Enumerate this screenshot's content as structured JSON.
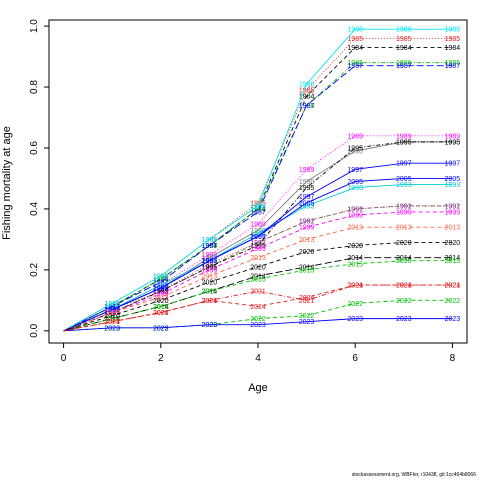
{
  "chart_data": {
    "type": "line",
    "title": "",
    "xlabel": "Age",
    "ylabel": "Fishing mortality at age",
    "x": [
      0,
      1,
      2,
      3,
      4,
      5,
      6,
      7,
      8
    ],
    "xlim": [
      -0.3,
      8.3
    ],
    "ylim": [
      -0.04,
      1.02
    ],
    "xticks": [
      "0",
      "2",
      "4",
      "6",
      "8"
    ],
    "yticks": [
      "0.0",
      "0.2",
      "0.4",
      "0.6",
      "0.8",
      "1.0"
    ],
    "grid": false,
    "series": [
      {
        "name": "1984",
        "color": "#000000",
        "dash": "dash",
        "values": [
          0,
          0.08,
          0.17,
          0.28,
          0.4,
          0.77,
          0.93,
          0.93,
          0.93
        ]
      },
      {
        "name": "1985",
        "color": "#e41a1c",
        "dash": "dot",
        "values": [
          0,
          0.09,
          0.18,
          0.3,
          0.42,
          0.79,
          0.96,
          0.96,
          0.96
        ]
      },
      {
        "name": "1986",
        "color": "#00c000",
        "dash": "dotdash",
        "values": [
          0,
          0.08,
          0.17,
          0.28,
          0.4,
          0.74,
          0.88,
          0.88,
          0.88
        ]
      },
      {
        "name": "1987",
        "color": "#0000ff",
        "dash": "longdash",
        "values": [
          0,
          0.08,
          0.16,
          0.28,
          0.39,
          0.74,
          0.87,
          0.87,
          0.87
        ]
      },
      {
        "name": "1988",
        "color": "#00e5ee",
        "dash": "solid",
        "values": [
          0,
          0.09,
          0.18,
          0.3,
          0.41,
          0.81,
          0.99,
          0.99,
          0.99
        ]
      },
      {
        "name": "1989",
        "color": "#ff00ff",
        "dash": "dot",
        "values": [
          0,
          0.07,
          0.15,
          0.25,
          0.35,
          0.53,
          0.64,
          0.64,
          0.64
        ]
      },
      {
        "name": "1990",
        "color": "#808080",
        "dash": "solid",
        "values": [
          0,
          0.07,
          0.14,
          0.24,
          0.33,
          0.49,
          0.59,
          0.62,
          0.62
        ]
      },
      {
        "name": "1991",
        "color": "#808000",
        "dash": "dash",
        "values": [
          0,
          0.06,
          0.13,
          0.21,
          0.29,
          0.36,
          0.4,
          0.41,
          0.41
        ]
      },
      {
        "name": "1992",
        "color": "#9932cc",
        "dash": "dot",
        "values": [
          0,
          0.07,
          0.13,
          0.22,
          0.29,
          0.36,
          0.4,
          0.41,
          0.41
        ]
      },
      {
        "name": "1993",
        "color": "#00ced1",
        "dash": "solid",
        "values": [
          0,
          0.07,
          0.15,
          0.23,
          0.32,
          0.41,
          0.47,
          0.48,
          0.48
        ]
      },
      {
        "name": "1995",
        "color": "#000000",
        "dash": "dotdash",
        "values": [
          0,
          0.06,
          0.13,
          0.21,
          0.28,
          0.47,
          0.6,
          0.62,
          0.62
        ]
      },
      {
        "name": "1997",
        "color": "#0000ff",
        "dash": "solid",
        "values": [
          0,
          0.07,
          0.14,
          0.23,
          0.31,
          0.44,
          0.53,
          0.55,
          0.55
        ]
      },
      {
        "name": "1999",
        "color": "#ff00ff",
        "dash": "dash",
        "values": [
          0,
          0.06,
          0.12,
          0.2,
          0.27,
          0.34,
          0.38,
          0.39,
          0.39
        ]
      },
      {
        "name": "2005",
        "color": "#0000ff",
        "dash": "solid",
        "values": [
          0,
          0.07,
          0.14,
          0.23,
          0.31,
          0.42,
          0.49,
          0.5,
          0.5
        ]
      },
      {
        "name": "2013",
        "color": "#ff6347",
        "dash": "dash",
        "values": [
          0,
          0.06,
          0.11,
          0.18,
          0.24,
          0.3,
          0.34,
          0.34,
          0.34
        ]
      },
      {
        "name": "2014",
        "color": "#000000",
        "dash": "longdash",
        "values": [
          0,
          0.04,
          0.08,
          0.13,
          0.18,
          0.21,
          0.24,
          0.24,
          0.24
        ]
      },
      {
        "name": "2015",
        "color": "#00c000",
        "dash": "dash",
        "values": [
          0,
          0.04,
          0.08,
          0.13,
          0.17,
          0.2,
          0.22,
          0.23,
          0.23
        ]
      },
      {
        "name": "2020",
        "color": "#000000",
        "dash": "dash",
        "values": [
          0,
          0.05,
          0.1,
          0.16,
          0.21,
          0.26,
          0.28,
          0.29,
          0.29
        ]
      },
      {
        "name": "2021",
        "color": "#e41a1c",
        "dash": "dotdash",
        "values": [
          0,
          0.03,
          0.06,
          0.1,
          0.13,
          0.1,
          0.15,
          0.15,
          0.15
        ]
      },
      {
        "name": "2022",
        "color": "#00c000",
        "dash": "dash",
        "values": [
          0,
          0.01,
          0.01,
          0.02,
          0.04,
          0.05,
          0.09,
          0.1,
          0.1
        ]
      },
      {
        "name": "2023",
        "color": "#0000ff",
        "dash": "solid",
        "values": [
          0,
          0.01,
          0.01,
          0.02,
          0.02,
          0.03,
          0.04,
          0.04,
          0.04
        ]
      },
      {
        "name": "2024",
        "color": "#e41a1c",
        "dash": "dash",
        "values": [
          0,
          0.03,
          0.06,
          0.1,
          0.08,
          0.11,
          0.15,
          0.15,
          0.15
        ]
      }
    ]
  },
  "footer_text": "stockassessment.org, WBFIer, r10438, git:1cc464b8066"
}
